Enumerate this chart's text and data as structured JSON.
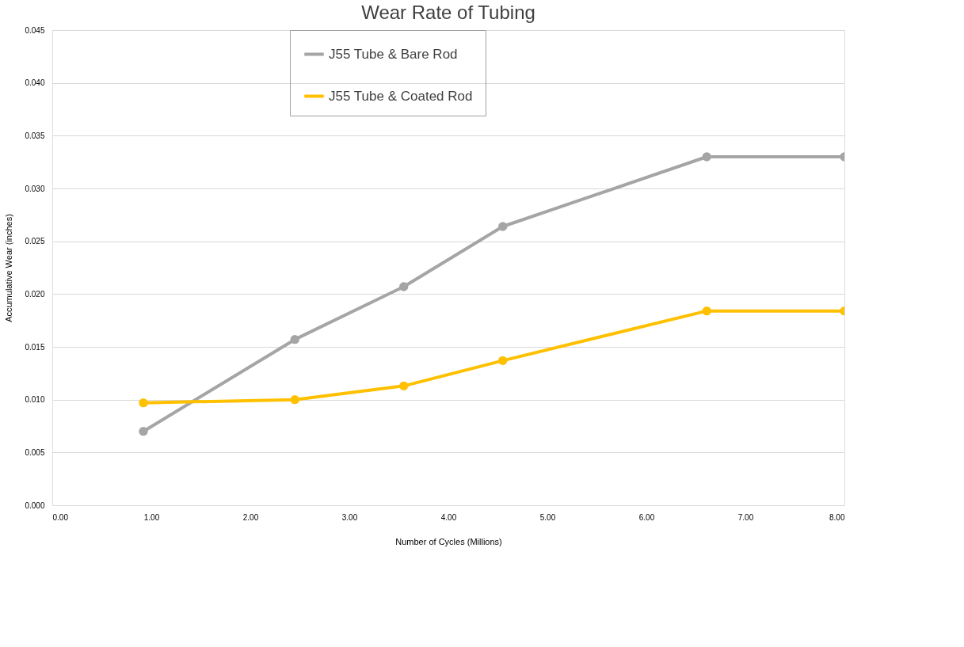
{
  "chart_data": {
    "type": "line",
    "title": "Wear Rate of Tubing",
    "xlabel": "Number of Cycles (Millions)",
    "ylabel": "Accumulative Wear (inches)",
    "series": [
      {
        "name": "J55 Tube & Bare Rod",
        "color": "#a5a5a5",
        "x": [
          0.92,
          2.45,
          3.55,
          4.55,
          6.61,
          8.0
        ],
        "values": [
          0.007,
          0.0157,
          0.0207,
          0.0264,
          0.033,
          0.033
        ]
      },
      {
        "name": "J55 Tube & Coated Rod",
        "color": "#ffc000",
        "x": [
          0.92,
          2.45,
          3.55,
          4.55,
          6.61,
          8.0
        ],
        "values": [
          0.0097,
          0.01,
          0.0113,
          0.0137,
          0.0184,
          0.0184
        ]
      }
    ],
    "xlim": [
      0,
      8
    ],
    "ylim": [
      0,
      0.045
    ],
    "xticks": [
      {
        "value": 0,
        "label": "0.00"
      },
      {
        "value": 1,
        "label": "1.00"
      },
      {
        "value": 2,
        "label": "2.00"
      },
      {
        "value": 3,
        "label": "3.00"
      },
      {
        "value": 4,
        "label": "4.00"
      },
      {
        "value": 5,
        "label": "5.00"
      },
      {
        "value": 6,
        "label": "6.00"
      },
      {
        "value": 7,
        "label": "7.00"
      },
      {
        "value": 8,
        "label": "8.00"
      }
    ],
    "yticks": [
      {
        "value": 0,
        "label": "0.000"
      },
      {
        "value": 0.005,
        "label": "0.005"
      },
      {
        "value": 0.01,
        "label": "0.010"
      },
      {
        "value": 0.015,
        "label": "0.015"
      },
      {
        "value": 0.02,
        "label": "0.020"
      },
      {
        "value": 0.025,
        "label": "0.025"
      },
      {
        "value": 0.03,
        "label": "0.030"
      },
      {
        "value": 0.035,
        "label": "0.035"
      },
      {
        "value": 0.04,
        "label": "0.040"
      },
      {
        "value": 0.045,
        "label": "0.045"
      }
    ],
    "grid": "y",
    "legend": "top",
    "marker": "circle",
    "line_style": "solid"
  }
}
